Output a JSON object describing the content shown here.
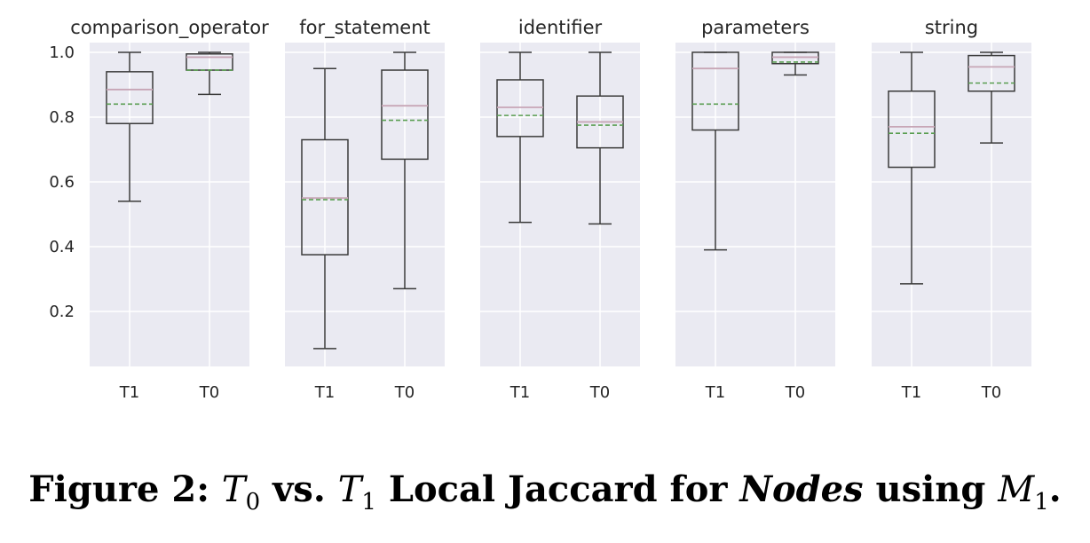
{
  "chart_data": {
    "type": "box",
    "ylim": [
      0.03,
      1.03
    ],
    "yticks": [
      0.2,
      0.4,
      0.6,
      0.8,
      1.0
    ],
    "ytick_labels": [
      "0.2",
      "0.4",
      "0.6",
      "0.8",
      "1.0"
    ],
    "grid": true,
    "colors": {
      "panel_bg": "#eaeaf2",
      "grid": "#ffffff",
      "box": "#3a3a3a",
      "median": "#c7a6b6",
      "mean": "#5a9e52"
    },
    "panels": [
      {
        "title": "comparison_operator",
        "categories": [
          "T1",
          "T0"
        ],
        "boxes": [
          {
            "min": 0.54,
            "q1": 0.78,
            "median": 0.885,
            "mean": 0.84,
            "q3": 0.94,
            "max": 1.0
          },
          {
            "min": 0.87,
            "q1": 0.945,
            "median": 0.985,
            "mean": 0.945,
            "q3": 0.995,
            "max": 1.0
          }
        ]
      },
      {
        "title": "for_statement",
        "categories": [
          "T1",
          "T0"
        ],
        "boxes": [
          {
            "min": 0.085,
            "q1": 0.375,
            "median": 0.55,
            "mean": 0.545,
            "q3": 0.73,
            "max": 0.95
          },
          {
            "min": 0.27,
            "q1": 0.67,
            "median": 0.835,
            "mean": 0.79,
            "q3": 0.945,
            "max": 1.0
          }
        ]
      },
      {
        "title": "identifier",
        "categories": [
          "T1",
          "T0"
        ],
        "boxes": [
          {
            "min": 0.475,
            "q1": 0.74,
            "median": 0.83,
            "mean": 0.805,
            "q3": 0.915,
            "max": 1.0
          },
          {
            "min": 0.47,
            "q1": 0.705,
            "median": 0.785,
            "mean": 0.775,
            "q3": 0.865,
            "max": 1.0
          }
        ]
      },
      {
        "title": "parameters",
        "categories": [
          "T1",
          "T0"
        ],
        "boxes": [
          {
            "min": 0.39,
            "q1": 0.76,
            "median": 0.95,
            "mean": 0.84,
            "q3": 1.0,
            "max": 1.0
          },
          {
            "min": 0.93,
            "q1": 0.965,
            "median": 0.985,
            "mean": 0.97,
            "q3": 1.0,
            "max": 1.0
          }
        ]
      },
      {
        "title": "string",
        "categories": [
          "T1",
          "T0"
        ],
        "boxes": [
          {
            "min": 0.285,
            "q1": 0.645,
            "median": 0.77,
            "mean": 0.75,
            "q3": 0.88,
            "max": 1.0
          },
          {
            "min": 0.72,
            "q1": 0.88,
            "median": 0.955,
            "mean": 0.905,
            "q3": 0.99,
            "max": 1.0
          }
        ]
      }
    ]
  },
  "caption": {
    "prefix": "Figure 2: ",
    "t0_base": "T",
    "t0_sub": "0",
    "vs": " vs. ",
    "t1_base": "T",
    "t1_sub": "1",
    "middle": " Local Jaccard for ",
    "emph": "Nodes",
    "using": " using ",
    "m_base": "M",
    "m_sub": "1",
    "end": "."
  }
}
